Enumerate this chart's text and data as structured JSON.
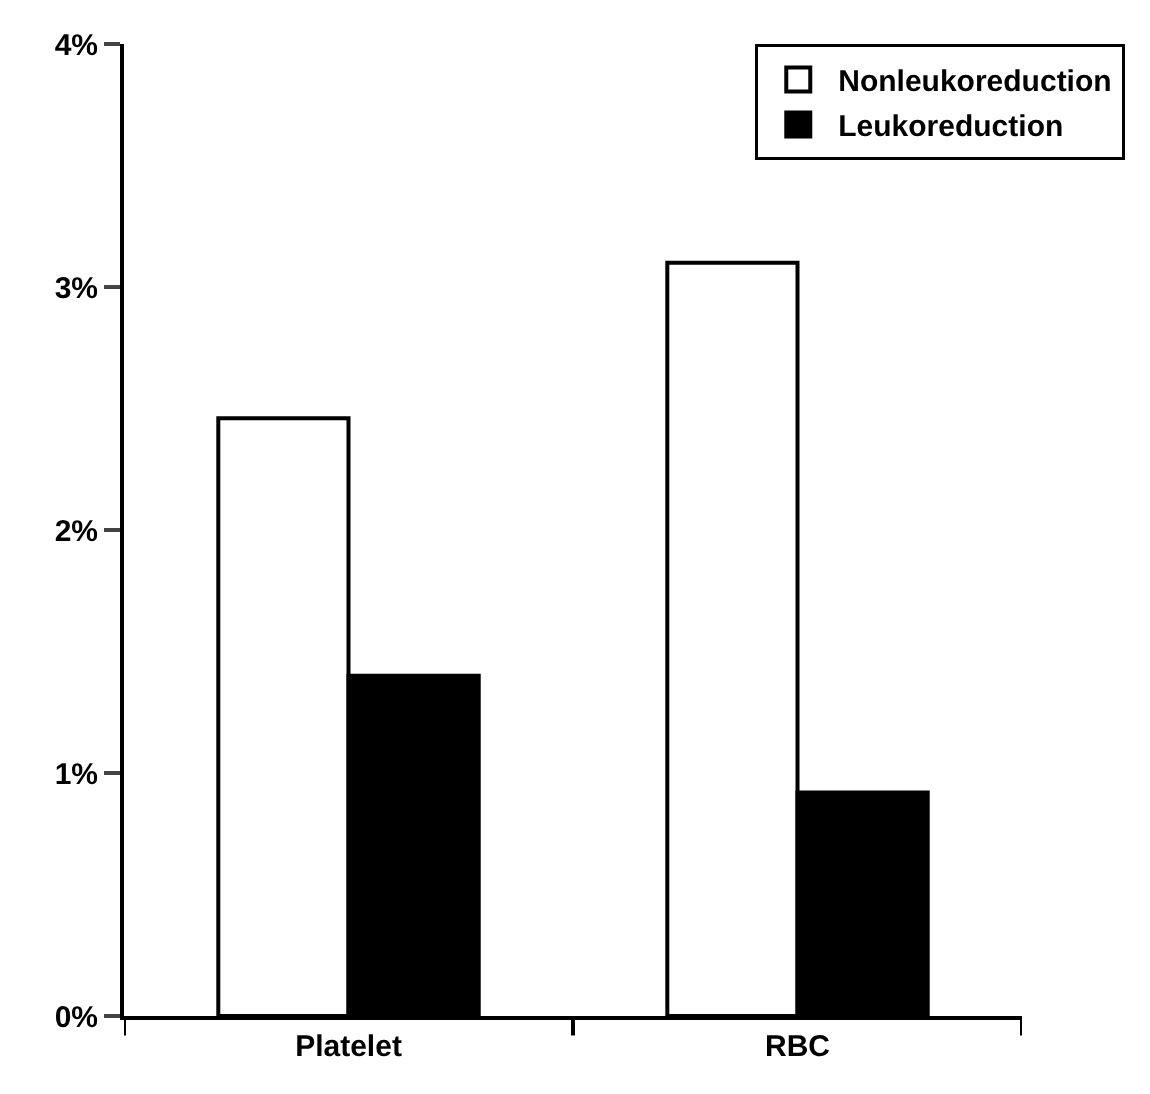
{
  "chart_data": {
    "type": "bar",
    "categories": [
      "Platelet",
      "RBC"
    ],
    "series": [
      {
        "name": "Nonleukoreduction",
        "color": "#ffffff",
        "values": [
          2.46,
          3.1
        ]
      },
      {
        "name": "Leukoreduction",
        "color": "#000000",
        "values": [
          1.4,
          0.92
        ]
      }
    ],
    "ylim": [
      0,
      4
    ],
    "yticks": [
      {
        "value": 0,
        "label": "0%"
      },
      {
        "value": 1,
        "label": "1%"
      },
      {
        "value": 2,
        "label": "2%"
      },
      {
        "value": 3,
        "label": "3%"
      },
      {
        "value": 4,
        "label": "4%"
      }
    ],
    "legend": "top right"
  }
}
